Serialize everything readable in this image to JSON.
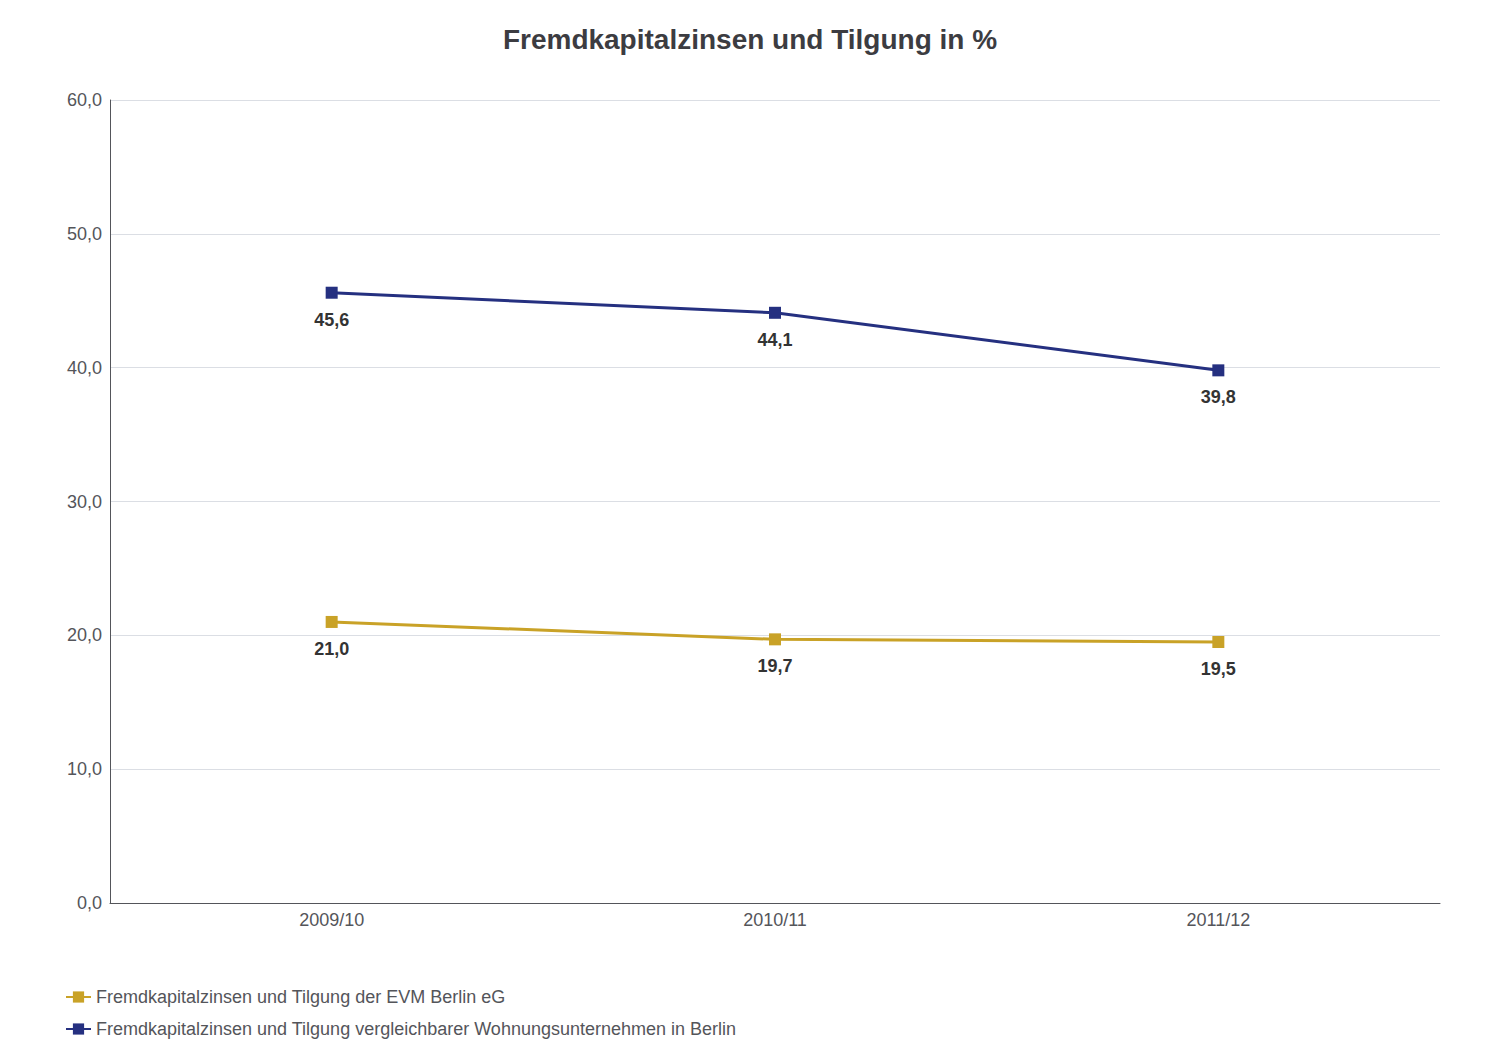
{
  "chart_data": {
    "type": "line",
    "title": "Fremdkapitalzinsen und Tilgung in %",
    "categories": [
      "2009/10",
      "2010/11",
      "2011/12"
    ],
    "series": [
      {
        "name": "Fremdkapitalzinsen und Tilgung der EVM Berlin eG",
        "color": "#C9A227",
        "marker": "square",
        "values": [
          21.0,
          19.7,
          19.5
        ],
        "value_labels": [
          "21,0",
          "19,7",
          "19,5"
        ]
      },
      {
        "name": "Fremdkapitalzinsen und Tilgung vergleichbarer Wohnungsunternehmen in Berlin",
        "color": "#253080",
        "marker": "square",
        "values": [
          45.6,
          44.1,
          39.8
        ],
        "value_labels": [
          "45,6",
          "44,1",
          "39,8"
        ]
      }
    ],
    "ylim": [
      0,
      60
    ],
    "yticks": [
      {
        "value": 0,
        "label": "0,0"
      },
      {
        "value": 10,
        "label": "10,0"
      },
      {
        "value": 20,
        "label": "20,0"
      },
      {
        "value": 30,
        "label": "30,0"
      },
      {
        "value": 40,
        "label": "40,0"
      },
      {
        "value": 50,
        "label": "50,0"
      },
      {
        "value": 60,
        "label": "60,0"
      }
    ],
    "grid": true,
    "legend": "lower left",
    "data_labels": true
  }
}
